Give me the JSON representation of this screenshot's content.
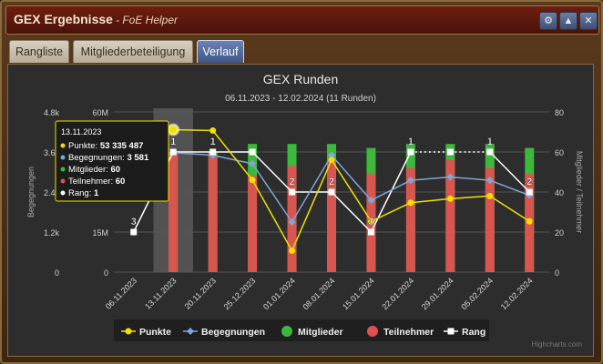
{
  "window": {
    "title": "GEX Ergebnisse",
    "subtitle": "- FoE Helper",
    "buttons": [
      "gear-icon",
      "minimize-icon",
      "close-icon"
    ]
  },
  "tabs": [
    {
      "label": "Rangliste",
      "active": false
    },
    {
      "label": "Mitgliederbeteiligung",
      "active": false
    },
    {
      "label": "Verlauf",
      "active": true
    }
  ],
  "chart_data": {
    "type": "bar",
    "title": "GEX Runden",
    "subtitle": "06.11.2023 - 12.02.2024 (11 Runden)",
    "categories": [
      "06.11.2023",
      "13.11.2023",
      "20.11.2023",
      "25.12.2023",
      "01.01.2024",
      "08.01.2024",
      "15.01.2024",
      "22.01.2024",
      "29.01.2024",
      "05.02.2024",
      "12.02.2024"
    ],
    "axes": {
      "punkte": {
        "ticks": [
          "0",
          "15M",
          "30M",
          "45M",
          "60M"
        ],
        "max": 60000000
      },
      "begegnungen": {
        "label": "Begegnungen",
        "ticks": [
          "0",
          "1.2k",
          "2.4k",
          "3.6k",
          "4.8k"
        ],
        "max": 4800
      },
      "right": {
        "label": "Mitglieder / Teilnehmer",
        "ticks": [
          "0",
          "20",
          "40",
          "60",
          "80"
        ],
        "max": 80
      }
    },
    "series": [
      {
        "name": "Punkte",
        "color": "#f0e000",
        "axis": "punkte",
        "values": [
          null,
          53335487,
          53000000,
          34500000,
          8000000,
          42000000,
          19000000,
          26000000,
          27500000,
          28500000,
          19000000
        ]
      },
      {
        "name": "Begegnungen",
        "color": "#7fa6d6",
        "axis": "begegnungen",
        "values": [
          null,
          3581,
          3500,
          3250,
          1500,
          3500,
          2150,
          2750,
          2850,
          2750,
          2300
        ]
      },
      {
        "name": "Mitglieder",
        "color": "#3db83d",
        "axis": "right",
        "values": [
          null,
          60,
          60,
          64,
          64,
          64,
          62,
          64,
          64,
          64,
          62
        ]
      },
      {
        "name": "Teilnehmer",
        "color": "#e05050",
        "axis": "right",
        "values": [
          null,
          60,
          58,
          48,
          53,
          56,
          49,
          52,
          56,
          52,
          49
        ]
      },
      {
        "name": "Rang",
        "color": "#ffffff",
        "axis": "right",
        "rank_labels": [
          "3",
          "1",
          "1",
          "",
          "2",
          "2",
          "3",
          "1",
          "",
          "1",
          "2"
        ],
        "values": [
          20,
          60,
          60,
          60,
          40,
          40,
          20,
          60,
          60,
          60,
          40
        ]
      }
    ],
    "tooltip": {
      "date": "13.11.2023",
      "lines": [
        {
          "label": "Punkte: ",
          "value": "53 335 487",
          "color": "#f0e000"
        },
        {
          "label": "Begegnungen: ",
          "value": "3 581",
          "color": "#7fa6d6"
        },
        {
          "label": "Mitglieder: ",
          "value": "60",
          "color": "#3db83d"
        },
        {
          "label": "Teilnehmer: ",
          "value": "60",
          "color": "#e05050"
        },
        {
          "label": "Rang: ",
          "value": "1",
          "color": "#ffffff"
        }
      ]
    },
    "legend": [
      "Punkte",
      "Begegnungen",
      "Mitglieder",
      "Teilnehmer",
      "Rang"
    ],
    "credits": "Highcharts.com"
  }
}
